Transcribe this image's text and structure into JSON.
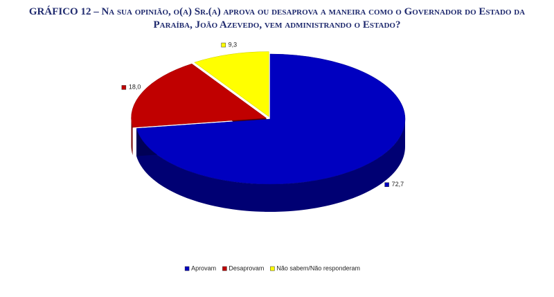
{
  "chart_data": {
    "type": "pie",
    "title": "GRÁFICO 12 – Na sua opinião, o(a) Sr.(a) aprova ou desaprova a maneira como o Governador do Estado da Paraíba, João Azevedo, vem administrando o Estado?",
    "categories": [
      "Aprovam",
      "Desaprovam",
      "Não sabem/Não responderam"
    ],
    "values": [
      72.7,
      18.0,
      9.3
    ],
    "value_labels": [
      "72,7",
      "18,0",
      "9,3"
    ],
    "colors": [
      "#0000c0",
      "#c00000",
      "#ffff00"
    ],
    "legend": "bottom"
  }
}
